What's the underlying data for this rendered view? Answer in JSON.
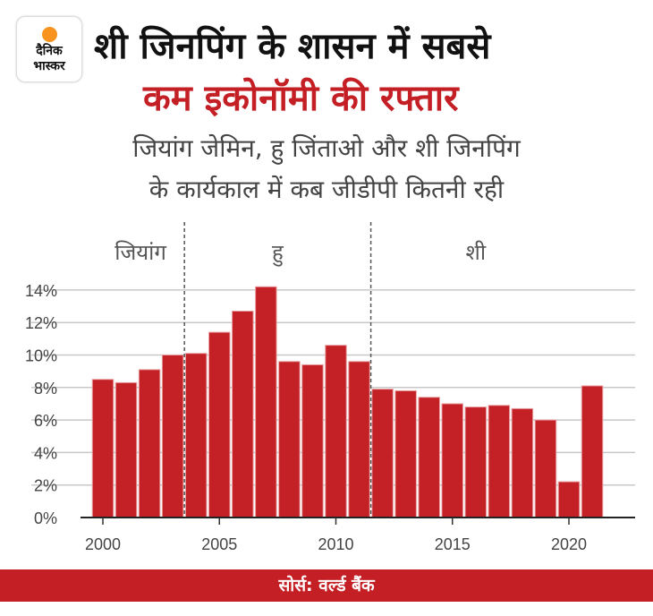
{
  "logo": {
    "line1": "दैनिक",
    "line2": "भास्कर"
  },
  "title": {
    "line1": "शी जिनपिंग के शासन में सबसे",
    "line2": "कम इकोनॉमी की रफ्तार"
  },
  "subtitle": {
    "line1": "जियांग जेमिन, हु जिंताओ और शी जिनपिंग",
    "line2": "के कार्यकाल में कब जीडीपी कितनी रही"
  },
  "colors": {
    "bar": "#c42126",
    "accent": "#c41f25"
  },
  "chart_data": {
    "type": "bar",
    "title": "",
    "xlabel": "",
    "ylabel": "",
    "x": [
      2000,
      2001,
      2002,
      2003,
      2004,
      2005,
      2006,
      2007,
      2008,
      2009,
      2010,
      2011,
      2012,
      2013,
      2014,
      2015,
      2016,
      2017,
      2018,
      2019,
      2020,
      2021
    ],
    "values": [
      8.5,
      8.3,
      9.1,
      10.0,
      10.1,
      11.4,
      12.7,
      14.2,
      9.6,
      9.4,
      10.6,
      9.6,
      7.9,
      7.8,
      7.4,
      7.0,
      6.8,
      6.9,
      6.7,
      6.0,
      2.2,
      8.1
    ],
    "ylim": [
      0,
      14
    ],
    "yticks": [
      0,
      2,
      4,
      6,
      8,
      10,
      12,
      14
    ],
    "ytick_labels": [
      "0%",
      "2%",
      "4%",
      "6%",
      "8%",
      "10%",
      "12%",
      "14%"
    ],
    "xticks": [
      2000,
      2005,
      2010,
      2015,
      2020
    ],
    "xtick_labels": [
      "2000",
      "2005",
      "2010",
      "2015",
      "2020"
    ],
    "grid": true,
    "era_dividers": [
      2003.5,
      2011.5
    ],
    "eras": [
      {
        "label": "जियांग",
        "center": 2001.5
      },
      {
        "label": "हु",
        "center": 2007.5
      },
      {
        "label": "शी",
        "center": 2016
      }
    ]
  },
  "footer": {
    "source": "सोर्स: वर्ल्ड बैंक"
  }
}
